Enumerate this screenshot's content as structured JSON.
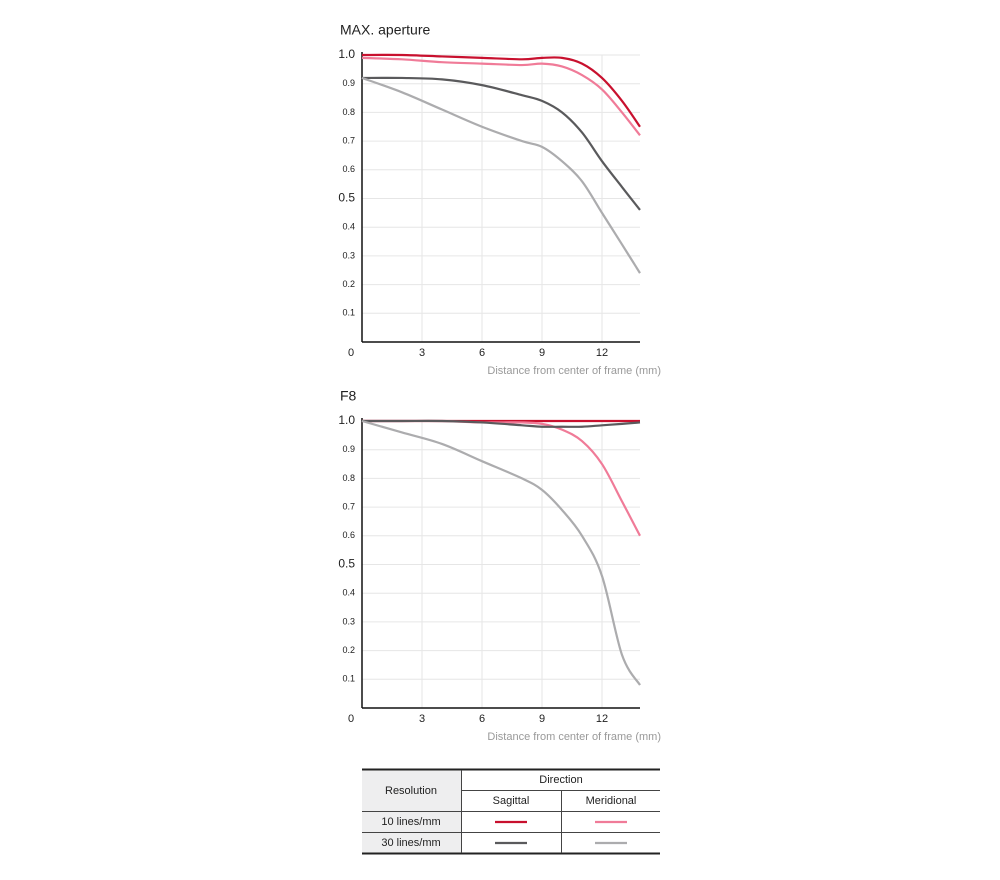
{
  "chart_data": [
    {
      "type": "line",
      "title": "MAX. aperture",
      "xlabel": "Distance from center of frame (mm)",
      "x": [
        0,
        2,
        4,
        6,
        8,
        9,
        10,
        11,
        12,
        13,
        13.9
      ],
      "xlim": [
        0,
        13.9
      ],
      "xticks": [
        0,
        3,
        6,
        9,
        12
      ],
      "ylim": [
        0,
        1
      ],
      "yticks": [
        0.1,
        0.2,
        0.3,
        0.4,
        0.5,
        0.6,
        0.7,
        0.8,
        0.9,
        {
          "value": 1,
          "label": "1.0"
        }
      ],
      "grid": true,
      "series": [
        {
          "color": "#c8102e",
          "values": [
            1.0,
            1.0,
            0.995,
            0.99,
            0.985,
            0.99,
            0.99,
            0.97,
            0.92,
            0.84,
            0.75
          ]
        },
        {
          "color": "#f07b98",
          "values": [
            0.99,
            0.985,
            0.975,
            0.97,
            0.965,
            0.97,
            0.96,
            0.93,
            0.88,
            0.8,
            0.72
          ]
        },
        {
          "color": "#5a5a5c",
          "values": [
            0.92,
            0.92,
            0.915,
            0.895,
            0.86,
            0.84,
            0.8,
            0.73,
            0.63,
            0.54,
            0.46
          ]
        },
        {
          "color": "#acacae",
          "values": [
            0.92,
            0.87,
            0.81,
            0.75,
            0.7,
            0.68,
            0.63,
            0.56,
            0.45,
            0.34,
            0.24
          ]
        }
      ]
    },
    {
      "type": "line",
      "title": "F8",
      "xlabel": "Distance from center of frame (mm)",
      "x": [
        0,
        2,
        4,
        6,
        8,
        9,
        10,
        11,
        12,
        13,
        13.9
      ],
      "xlim": [
        0,
        13.9
      ],
      "xticks": [
        0,
        3,
        6,
        9,
        12
      ],
      "ylim": [
        0,
        1
      ],
      "yticks": [
        0.1,
        0.2,
        0.3,
        0.4,
        0.5,
        0.6,
        0.7,
        0.8,
        0.9,
        {
          "value": 1,
          "label": "1.0"
        }
      ],
      "grid": true,
      "series": [
        {
          "color": "#c8102e",
          "values": [
            1.0,
            1.0,
            1.0,
            1.0,
            1.0,
            1.0,
            1.0,
            1.0,
            1.0,
            1.0,
            1.0
          ]
        },
        {
          "color": "#f07b98",
          "values": [
            1.0,
            1.0,
            1.0,
            0.995,
            0.995,
            0.99,
            0.97,
            0.93,
            0.85,
            0.72,
            0.6
          ]
        },
        {
          "color": "#5a5a5c",
          "values": [
            1.0,
            1.0,
            1.0,
            0.995,
            0.985,
            0.98,
            0.98,
            0.98,
            0.985,
            0.99,
            0.995
          ]
        },
        {
          "color": "#acacae",
          "values": [
            1.0,
            0.96,
            0.92,
            0.86,
            0.8,
            0.76,
            0.69,
            0.6,
            0.46,
            0.185,
            0.08
          ]
        }
      ]
    }
  ],
  "legend": {
    "resolution_header": "Resolution",
    "direction_header": "Direction",
    "columns": [
      "Sagittal",
      "Meridional"
    ],
    "rows": [
      "10 lines/mm",
      "30 lines/mm"
    ]
  }
}
